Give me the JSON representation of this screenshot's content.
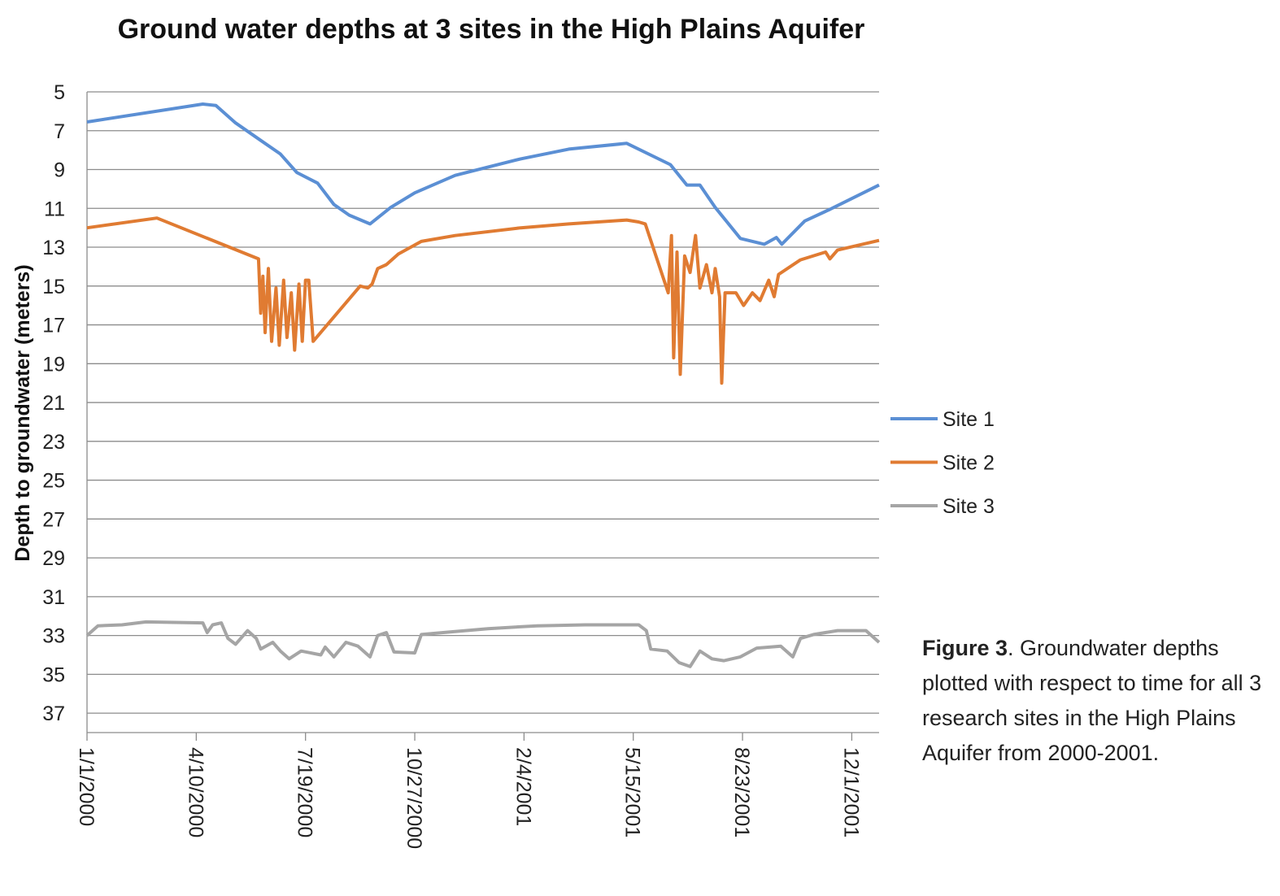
{
  "chart_data": {
    "type": "line",
    "title": "Ground water depths at 3 sites in the High Plains Aquifer",
    "xlabel": "",
    "ylabel": "Depth to groundwater (meters)",
    "ylim": [
      5,
      38
    ],
    "y_reversed": true,
    "y_ticks": [
      "5",
      "7",
      "9",
      "11",
      "13",
      "15",
      "17",
      "19",
      "21",
      "23",
      "25",
      "27",
      "29",
      "31",
      "33",
      "35",
      "37"
    ],
    "x_ticks": [
      "1/1/2000",
      "4/10/2000",
      "7/19/2000",
      "10/27/2000",
      "2/4/2001",
      "5/15/2001",
      "8/23/2001",
      "12/1/2001"
    ],
    "xlim": [
      "2000-01-01",
      "2001-12-26"
    ],
    "grid": "horizontal",
    "legend": "right",
    "series": [
      {
        "name": "Site 1",
        "color": "#5b8fd4",
        "points": [
          [
            "2000-01-01",
            6.55
          ],
          [
            "2000-04-16",
            5.63
          ],
          [
            "2000-04-28",
            5.7
          ],
          [
            "2000-05-16",
            6.6
          ],
          [
            "2000-06-08",
            7.5
          ],
          [
            "2000-06-26",
            8.2
          ],
          [
            "2000-07-11",
            9.15
          ],
          [
            "2000-07-30",
            9.7
          ],
          [
            "2000-08-14",
            10.8
          ],
          [
            "2000-08-28",
            11.35
          ],
          [
            "2000-09-16",
            11.8
          ],
          [
            "2000-10-05",
            10.95
          ],
          [
            "2000-10-27",
            10.2
          ],
          [
            "2000-12-03",
            9.3
          ],
          [
            "2001-02-01",
            8.45
          ],
          [
            "2001-03-17",
            7.95
          ],
          [
            "2001-05-09",
            7.65
          ],
          [
            "2001-06-18",
            8.75
          ],
          [
            "2001-07-03",
            9.8
          ],
          [
            "2001-07-15",
            9.8
          ],
          [
            "2001-07-29",
            10.95
          ],
          [
            "2001-08-21",
            12.55
          ],
          [
            "2001-09-12",
            12.85
          ],
          [
            "2001-09-23",
            12.5
          ],
          [
            "2001-09-28",
            12.85
          ],
          [
            "2001-10-19",
            11.65
          ],
          [
            "2001-11-11",
            11.05
          ],
          [
            "2001-12-26",
            9.8
          ]
        ]
      },
      {
        "name": "Site 2",
        "color": "#e07b32",
        "points": [
          [
            "2000-01-01",
            12.0
          ],
          [
            "2000-03-05",
            11.5
          ],
          [
            "2000-06-06",
            13.6
          ],
          [
            "2000-06-08",
            16.4
          ],
          [
            "2000-06-10",
            14.5
          ],
          [
            "2000-06-12",
            17.4
          ],
          [
            "2000-06-15",
            14.1
          ],
          [
            "2000-06-18",
            17.85
          ],
          [
            "2000-06-22",
            15.1
          ],
          [
            "2000-06-25",
            18.05
          ],
          [
            "2000-06-29",
            14.7
          ],
          [
            "2000-07-02",
            17.65
          ],
          [
            "2000-07-06",
            15.35
          ],
          [
            "2000-07-09",
            18.3
          ],
          [
            "2000-07-13",
            14.9
          ],
          [
            "2000-07-16",
            17.85
          ],
          [
            "2000-07-19",
            14.7
          ],
          [
            "2000-07-22",
            14.7
          ],
          [
            "2000-07-26",
            17.85
          ],
          [
            "2000-09-07",
            15.0
          ],
          [
            "2000-09-14",
            15.1
          ],
          [
            "2000-09-18",
            14.9
          ],
          [
            "2000-09-23",
            14.1
          ],
          [
            "2000-10-01",
            13.9
          ],
          [
            "2000-10-12",
            13.35
          ],
          [
            "2000-11-02",
            12.7
          ],
          [
            "2000-12-03",
            12.4
          ],
          [
            "2001-02-01",
            12.0
          ],
          [
            "2001-03-17",
            11.8
          ],
          [
            "2001-05-09",
            11.6
          ],
          [
            "2001-05-20",
            11.7
          ],
          [
            "2001-05-26",
            11.8
          ],
          [
            "2001-06-16",
            15.35
          ],
          [
            "2001-06-19",
            12.4
          ],
          [
            "2001-06-21",
            18.7
          ],
          [
            "2001-06-24",
            13.25
          ],
          [
            "2001-06-27",
            19.55
          ],
          [
            "2001-07-01",
            13.45
          ],
          [
            "2001-07-06",
            14.3
          ],
          [
            "2001-07-11",
            12.4
          ],
          [
            "2001-07-15",
            15.1
          ],
          [
            "2001-07-21",
            13.9
          ],
          [
            "2001-07-26",
            15.35
          ],
          [
            "2001-07-29",
            14.1
          ],
          [
            "2001-08-02",
            15.55
          ],
          [
            "2001-08-04",
            20.0
          ],
          [
            "2001-08-07",
            15.35
          ],
          [
            "2001-08-17",
            15.35
          ],
          [
            "2001-08-24",
            16.0
          ],
          [
            "2001-09-01",
            15.35
          ],
          [
            "2001-09-08",
            15.75
          ],
          [
            "2001-09-16",
            14.7
          ],
          [
            "2001-09-21",
            15.55
          ],
          [
            "2001-09-25",
            14.4
          ],
          [
            "2001-10-15",
            13.65
          ],
          [
            "2001-11-07",
            13.25
          ],
          [
            "2001-11-11",
            13.6
          ],
          [
            "2001-11-18",
            13.15
          ],
          [
            "2001-12-26",
            12.65
          ]
        ]
      },
      {
        "name": "Site 3",
        "color": "#a5a5a5",
        "points": [
          [
            "2000-01-01",
            33.0
          ],
          [
            "2000-01-11",
            32.5
          ],
          [
            "2000-02-02",
            32.45
          ],
          [
            "2000-02-24",
            32.3
          ],
          [
            "2000-04-16",
            32.35
          ],
          [
            "2000-04-20",
            32.85
          ],
          [
            "2000-04-25",
            32.45
          ],
          [
            "2000-05-03",
            32.35
          ],
          [
            "2000-05-09",
            33.15
          ],
          [
            "2000-05-16",
            33.45
          ],
          [
            "2000-05-27",
            32.75
          ],
          [
            "2000-06-04",
            33.15
          ],
          [
            "2000-06-08",
            33.7
          ],
          [
            "2000-06-19",
            33.35
          ],
          [
            "2000-06-26",
            33.8
          ],
          [
            "2000-07-04",
            34.2
          ],
          [
            "2000-07-15",
            33.8
          ],
          [
            "2000-08-02",
            34.0
          ],
          [
            "2000-08-06",
            33.6
          ],
          [
            "2000-08-14",
            34.1
          ],
          [
            "2000-08-25",
            33.35
          ],
          [
            "2000-09-05",
            33.55
          ],
          [
            "2000-09-16",
            34.1
          ],
          [
            "2000-09-23",
            33.0
          ],
          [
            "2000-10-01",
            32.85
          ],
          [
            "2000-10-08",
            33.85
          ],
          [
            "2000-10-27",
            33.9
          ],
          [
            "2000-11-02",
            32.95
          ],
          [
            "2000-11-22",
            32.85
          ],
          [
            "2001-01-02",
            32.65
          ],
          [
            "2001-02-16",
            32.5
          ],
          [
            "2001-04-01",
            32.45
          ],
          [
            "2001-05-20",
            32.45
          ],
          [
            "2001-05-27",
            32.75
          ],
          [
            "2001-05-31",
            33.7
          ],
          [
            "2001-06-15",
            33.8
          ],
          [
            "2001-06-26",
            34.4
          ],
          [
            "2001-07-06",
            34.6
          ],
          [
            "2001-07-15",
            33.8
          ],
          [
            "2001-07-26",
            34.2
          ],
          [
            "2001-08-06",
            34.3
          ],
          [
            "2001-08-21",
            34.1
          ],
          [
            "2001-09-05",
            33.65
          ],
          [
            "2001-09-27",
            33.55
          ],
          [
            "2001-10-08",
            34.1
          ],
          [
            "2001-10-15",
            33.15
          ],
          [
            "2001-10-27",
            32.95
          ],
          [
            "2001-11-18",
            32.75
          ],
          [
            "2001-12-14",
            32.75
          ],
          [
            "2001-12-26",
            33.35
          ]
        ]
      }
    ]
  },
  "caption": {
    "label": "Figure 3",
    "text": ". Groundwater depths plotted with respect to time for all 3 research sites in the High Plains Aquifer from 2000-2001."
  }
}
